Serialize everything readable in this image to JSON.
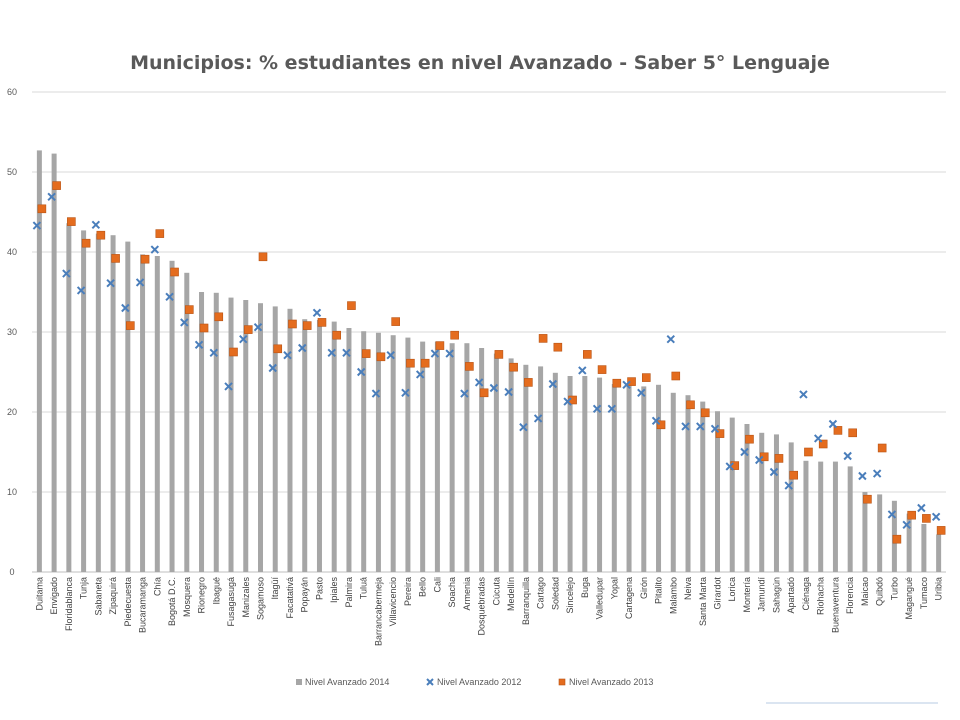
{
  "colors": {
    "bar_2014": "#a6a6a6",
    "marker_2012": "#4a7ebb",
    "marker_2013": "#e46c1e",
    "grid": "#d9d9d9",
    "text": "#595959"
  },
  "chart_data": {
    "type": "bar",
    "title": "Municipios: % estudiantes en nivel Avanzado - Saber 5° Lenguaje",
    "xlabel": "",
    "ylabel": "",
    "ylim": [
      0,
      60
    ],
    "yticks": [
      "0",
      "10",
      "20",
      "30",
      "40",
      "50",
      "60"
    ],
    "grid": true,
    "legend_position": "bottom",
    "categories": [
      "Duitama",
      "Envigado",
      "Floridablanca",
      "Tunja",
      "Sabaneta",
      "Zipaquirá",
      "Piedecuesta",
      "Bucaramanga",
      "Chía",
      "Bogotá D.C.",
      "Mosquera",
      "Rionegro",
      "Ibagué",
      "Fusagasugá",
      "Manizales",
      "Sogamoso",
      "Itagüí",
      "Facatativá",
      "Popayán",
      "Pasto",
      "Ipiales",
      "Palmira",
      "Tuluá",
      "Barrancabermeja",
      "Villavicencio",
      "Pereira",
      "Bello",
      "Cali",
      "Soacha",
      "Armenia",
      "Dosquebradas",
      "Cúcuta",
      "Medellín",
      "Barranquilla",
      "Cartago",
      "Soledad",
      "Sincelejo",
      "Buga",
      "Valledupar",
      "Yopal",
      "Cartagena",
      "Girón",
      "Pitalito",
      "Malambo",
      "Neiva",
      "Santa Marta",
      "Girardot",
      "Lorica",
      "Montería",
      "Jamundí",
      "Sahagún",
      "Apartadó",
      "Ciénaga",
      "Riohacha",
      "Buenaventura",
      "Florencia",
      "Maicao",
      "Quibdó",
      "Turbo",
      "Magangué",
      "Tumaco",
      "Uribia"
    ],
    "series": [
      {
        "name": "Nivel Avanzado 2014",
        "kind": "bar",
        "values": [
          52.7,
          52.3,
          43.6,
          42.7,
          42.3,
          42.1,
          41.3,
          39.7,
          39.5,
          38.9,
          37.4,
          35.0,
          34.9,
          34.3,
          34.0,
          33.6,
          33.2,
          32.9,
          31.6,
          31.5,
          31.3,
          30.5,
          30.1,
          29.9,
          29.6,
          29.3,
          28.8,
          28.8,
          28.6,
          28.6,
          28.0,
          27.3,
          26.7,
          25.9,
          25.7,
          24.9,
          24.5,
          24.5,
          24.3,
          23.5,
          23.4,
          23.2,
          23.4,
          22.4,
          22.1,
          21.3,
          20.1,
          19.3,
          18.5,
          17.4,
          17.2,
          16.2,
          13.9,
          13.8,
          13.8,
          13.2,
          10.0,
          9.7,
          8.9,
          7.3,
          6.0,
          4.7
        ]
      },
      {
        "name": "Nivel Avanzado 2012",
        "kind": "marker-x",
        "values": [
          43.3,
          46.9,
          37.3,
          35.2,
          43.4,
          36.1,
          33.0,
          36.2,
          40.3,
          34.4,
          31.2,
          28.4,
          27.4,
          23.2,
          29.1,
          30.6,
          25.5,
          27.1,
          28.0,
          32.4,
          27.4,
          27.4,
          25.0,
          22.3,
          27.1,
          22.4,
          24.7,
          27.3,
          27.3,
          22.3,
          23.7,
          23.0,
          22.5,
          18.1,
          19.2,
          23.5,
          21.3,
          25.2,
          20.4,
          20.4,
          23.4,
          22.4,
          18.9,
          29.1,
          18.2,
          18.2,
          17.9,
          13.2,
          15.0,
          14.0,
          12.5,
          10.8,
          22.2,
          16.7,
          18.5,
          14.5,
          12.0,
          12.3,
          7.2,
          5.9,
          8.0,
          6.9
        ]
      },
      {
        "name": "Nivel Avanzado 2013",
        "kind": "marker-square",
        "values": [
          45.4,
          48.3,
          43.8,
          41.1,
          42.1,
          39.2,
          30.8,
          39.1,
          42.3,
          37.5,
          32.8,
          30.5,
          31.9,
          27.5,
          30.3,
          39.4,
          27.9,
          31.0,
          30.8,
          31.2,
          29.6,
          33.3,
          27.3,
          26.9,
          31.3,
          26.1,
          26.1,
          28.3,
          29.6,
          25.7,
          22.4,
          27.2,
          25.6,
          23.7,
          29.2,
          28.1,
          21.5,
          27.2,
          25.3,
          23.6,
          23.8,
          24.3,
          18.4,
          24.5,
          20.9,
          19.9,
          17.3,
          13.3,
          16.6,
          14.4,
          14.2,
          12.1,
          15.0,
          16.0,
          17.7,
          17.4,
          9.1,
          15.5,
          4.1,
          7.1,
          6.7,
          5.2
        ]
      }
    ]
  }
}
